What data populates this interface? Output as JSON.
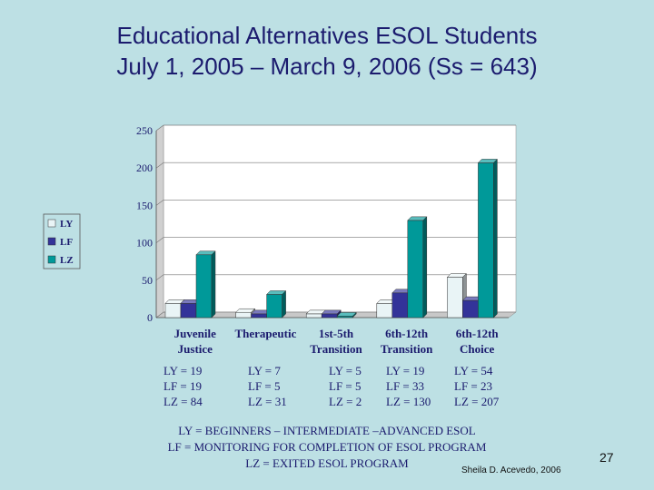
{
  "title_line1": "Educational Alternatives ESOL Students",
  "title_line2": "July 1, 2005 – March 9, 2006 (Ss = 643)",
  "chart_data": {
    "type": "bar",
    "categories": [
      [
        "Juvenile",
        "Justice"
      ],
      [
        "Therapeutic",
        ""
      ],
      [
        "1st-5th",
        "Transition"
      ],
      [
        "6th-12th",
        "Transition"
      ],
      [
        "6th-12th",
        "Choice"
      ]
    ],
    "series": [
      {
        "name": "LY",
        "values": [
          19,
          7,
          5,
          19,
          54
        ],
        "color": "#e9f4f6"
      },
      {
        "name": "LF",
        "values": [
          19,
          5,
          5,
          33,
          23
        ],
        "color": "#333399"
      },
      {
        "name": "LZ",
        "values": [
          84,
          31,
          2,
          130,
          207
        ],
        "color": "#009999"
      }
    ],
    "yticks": [
      "0",
      "50",
      "100",
      "150",
      "200",
      "250"
    ],
    "ylim": [
      0,
      250
    ],
    "grid": true,
    "legend": "left"
  },
  "counts": [
    [
      "LY = 19",
      "LF = 19",
      "LZ = 84"
    ],
    [
      "LY = 7",
      "LF =  5",
      "LZ = 31"
    ],
    [
      "LY = 5",
      "LF = 5",
      "LZ = 2"
    ],
    [
      "LY = 19",
      "LF = 33",
      "LZ = 130"
    ],
    [
      "LY = 54",
      "LF = 23",
      "LZ = 207"
    ]
  ],
  "notes": [
    "LY = BEGINNERS – INTERMEDIATE –ADVANCED ESOL",
    "LF = MONITORING FOR COMPLETION OF ESOL PROGRAM",
    "LZ = EXITED ESOL PROGRAM"
  ],
  "author": "Sheila D. Acevedo, 2006",
  "page_number": "27"
}
